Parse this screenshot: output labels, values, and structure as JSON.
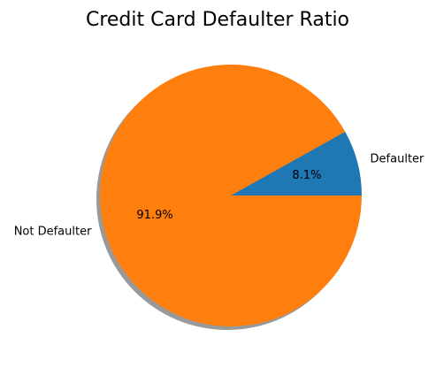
{
  "chart_data": {
    "type": "pie",
    "title": "Credit Card Defaulter Ratio",
    "labels": [
      "Defaulter",
      "Not Defaulter"
    ],
    "values": [
      8.1,
      91.9
    ],
    "value_labels": [
      "8.1%",
      "91.9%"
    ],
    "colors": [
      "#1f77b4",
      "#ff7f0e"
    ],
    "start_angle_deg": 0,
    "direction": "counterclockwise",
    "shadow": true,
    "legend": "none"
  }
}
